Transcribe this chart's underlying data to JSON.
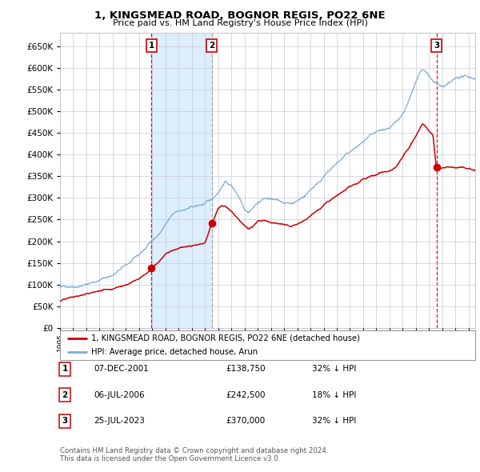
{
  "title": "1, KINGSMEAD ROAD, BOGNOR REGIS, PO22 6NE",
  "subtitle": "Price paid vs. HM Land Registry's House Price Index (HPI)",
  "legend_line1": "1, KINGSMEAD ROAD, BOGNOR REGIS, PO22 6NE (detached house)",
  "legend_line2": "HPI: Average price, detached house, Arun",
  "transactions": [
    {
      "label": "1",
      "date": "07-DEC-2001",
      "price": 138750,
      "hpi_pct": "32% ↓ HPI",
      "x_year": 2001.93
    },
    {
      "label": "2",
      "date": "06-JUL-2006",
      "price": 242500,
      "hpi_pct": "18% ↓ HPI",
      "x_year": 2006.51
    },
    {
      "label": "3",
      "date": "25-JUL-2023",
      "price": 370000,
      "hpi_pct": "32% ↓ HPI",
      "x_year": 2023.56
    }
  ],
  "footnote1": "Contains HM Land Registry data © Crown copyright and database right 2024.",
  "footnote2": "This data is licensed under the Open Government Licence v3.0.",
  "hpi_color": "#7aaed6",
  "price_color": "#cc0000",
  "background_color": "#ffffff",
  "grid_color": "#c8c8d8",
  "shade_color": "#ddeeff",
  "ylim": [
    0,
    680000
  ],
  "xlim_start": 1995.0,
  "xlim_end": 2026.5
}
